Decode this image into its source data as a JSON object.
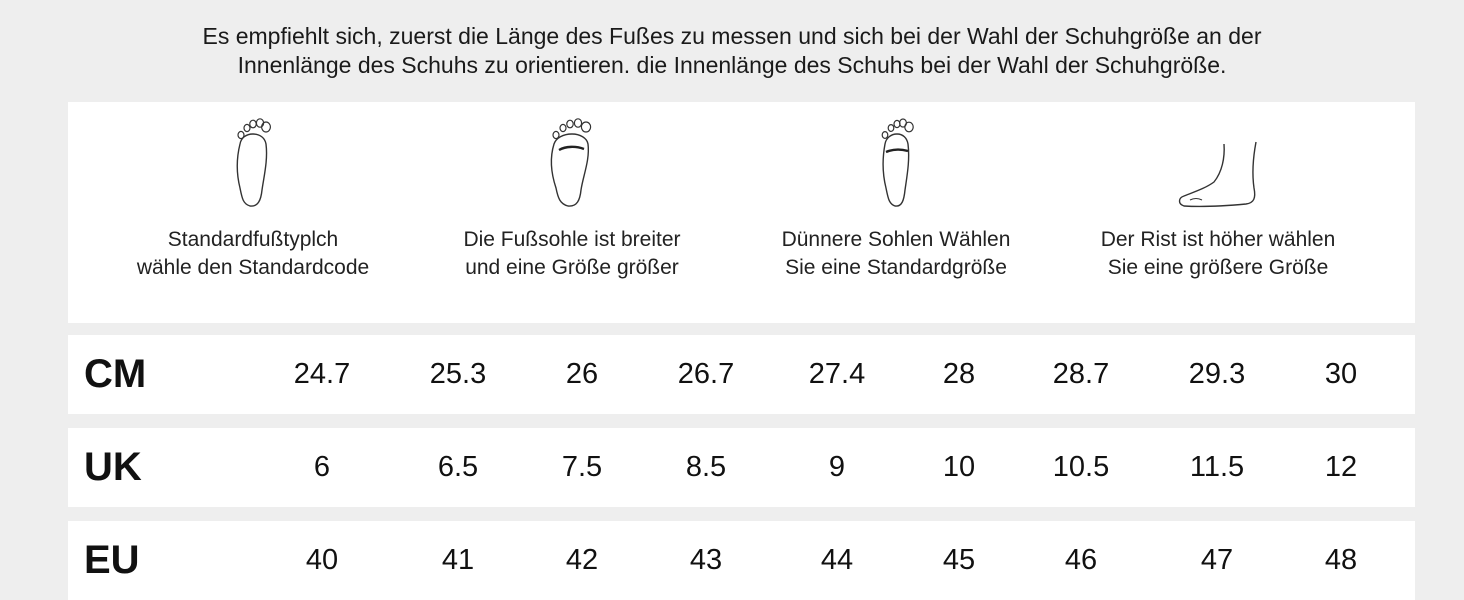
{
  "intro": {
    "line1": "Es empfiehlt sich, zuerst die Länge des Fußes zu messen und sich bei der Wahl der Schuhgröße an der",
    "line2": "Innenlänge des Schuhs zu orientieren. die Innenlänge des Schuhs bei der Wahl der Schuhgröße."
  },
  "foot_types": [
    {
      "icon": "standard-foot-icon",
      "line1": "Standardfußtyplch",
      "line2": "wähle den Standardcode"
    },
    {
      "icon": "wide-foot-icon",
      "line1": "Die Fußsohle ist breiter",
      "line2": "und eine Größe größer"
    },
    {
      "icon": "thin-foot-icon",
      "line1": "Dünnere Sohlen Wählen",
      "line2": "Sie eine Standardgröße"
    },
    {
      "icon": "high-instep-foot-icon",
      "line1": "Der Rist ist höher wählen",
      "line2": "Sie eine größere Größe"
    }
  ],
  "size_table": {
    "rows": [
      {
        "label": "CM",
        "values": [
          "24.7",
          "25.3",
          "26",
          "26.7",
          "27.4",
          "28",
          "28.7",
          "29.3",
          "30"
        ]
      },
      {
        "label": "UK",
        "values": [
          "6",
          "6.5",
          "7.5",
          "8.5",
          "9",
          "10",
          "10.5",
          "11.5",
          "12"
        ]
      },
      {
        "label": "EU",
        "values": [
          "40",
          "41",
          "42",
          "43",
          "44",
          "45",
          "46",
          "47",
          "48"
        ]
      }
    ]
  },
  "colors": {
    "background": "#eeeeee",
    "panel": "#ffffff",
    "text": "#111111"
  }
}
